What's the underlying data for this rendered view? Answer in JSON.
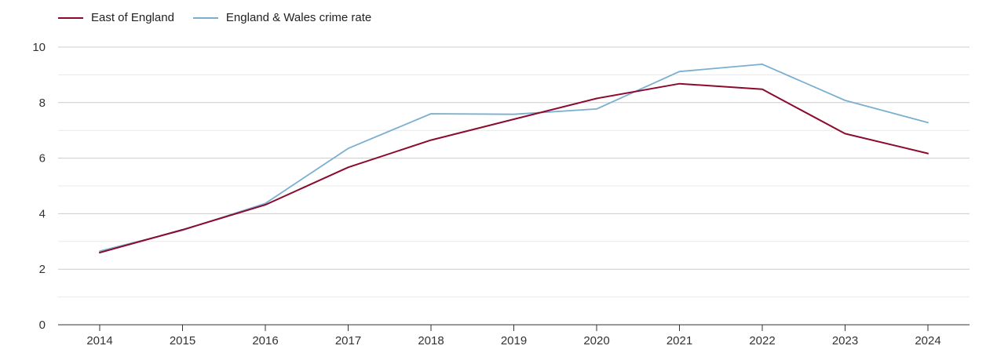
{
  "chart_data": {
    "type": "line",
    "title": "",
    "xlabel": "",
    "ylabel": "",
    "x": [
      "2014",
      "2015",
      "2016",
      "2017",
      "2018",
      "2019",
      "2020",
      "2021",
      "2022",
      "2023",
      "2024"
    ],
    "ylim": [
      0,
      10
    ],
    "yticks": [
      "0",
      "2",
      "4",
      "6",
      "8",
      "10"
    ],
    "grid": true,
    "legend_position": "top-left",
    "series": [
      {
        "name": "East of England",
        "color": "#8b0a2e",
        "values": [
          2.6,
          3.42,
          4.32,
          5.67,
          6.65,
          7.4,
          8.15,
          8.68,
          8.48,
          6.88,
          6.17
        ]
      },
      {
        "name": "England & Wales crime rate",
        "color": "#7aafd0",
        "values": [
          2.65,
          3.4,
          4.37,
          6.35,
          7.6,
          7.58,
          7.77,
          9.12,
          9.38,
          8.08,
          7.28
        ]
      }
    ]
  }
}
